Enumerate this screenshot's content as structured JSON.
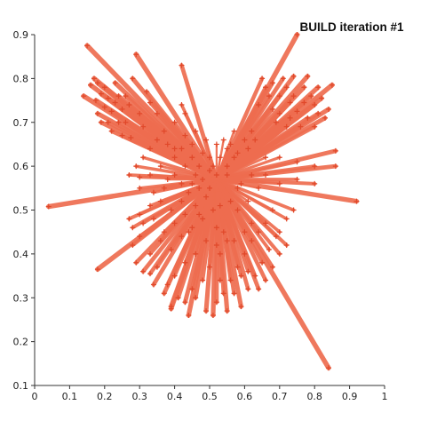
{
  "chart_data": {
    "type": "scatter",
    "title": "BUILD iteration #1",
    "xlabel": "",
    "ylabel": "",
    "xlim": [
      0,
      1
    ],
    "ylim": [
      0.1,
      0.9
    ],
    "xticks": [
      "0",
      "0.1",
      "0.2",
      "0.3",
      "0.4",
      "0.5",
      "0.6",
      "0.7",
      "0.8",
      "0.9",
      "1"
    ],
    "yticks": [
      "0.1",
      "0.2",
      "0.3",
      "0.4",
      "0.5",
      "0.6",
      "0.7",
      "0.8",
      "0.9"
    ],
    "grid": false,
    "colors": {
      "edge": "#ee6d4f",
      "marker": "#e0482a"
    },
    "center": [
      0.52,
      0.57
    ],
    "points": [
      [
        0.15,
        0.875
      ],
      [
        0.14,
        0.76
      ],
      [
        0.16,
        0.785
      ],
      [
        0.17,
        0.8
      ],
      [
        0.175,
        0.75
      ],
      [
        0.18,
        0.72
      ],
      [
        0.18,
        0.79
      ],
      [
        0.19,
        0.7
      ],
      [
        0.19,
        0.765
      ],
      [
        0.2,
        0.735
      ],
      [
        0.2,
        0.78
      ],
      [
        0.21,
        0.7
      ],
      [
        0.21,
        0.755
      ],
      [
        0.22,
        0.68
      ],
      [
        0.22,
        0.725
      ],
      [
        0.23,
        0.745
      ],
      [
        0.23,
        0.79
      ],
      [
        0.24,
        0.7
      ],
      [
        0.24,
        0.76
      ],
      [
        0.25,
        0.73
      ],
      [
        0.25,
        0.67
      ],
      [
        0.26,
        0.76
      ],
      [
        0.26,
        0.7
      ],
      [
        0.27,
        0.74
      ],
      [
        0.275,
        0.665
      ],
      [
        0.28,
        0.8
      ],
      [
        0.29,
        0.855
      ],
      [
        0.3,
        0.72
      ],
      [
        0.31,
        0.69
      ],
      [
        0.32,
        0.77
      ],
      [
        0.33,
        0.745
      ],
      [
        0.35,
        0.72
      ],
      [
        0.38,
        0.65
      ],
      [
        0.4,
        0.64
      ],
      [
        0.42,
        0.64
      ],
      [
        0.43,
        0.67
      ],
      [
        0.45,
        0.65
      ],
      [
        0.42,
        0.83
      ],
      [
        0.42,
        0.74
      ],
      [
        0.45,
        0.62
      ],
      [
        0.47,
        0.6
      ],
      [
        0.48,
        0.63
      ],
      [
        0.46,
        0.58
      ],
      [
        0.5,
        0.62
      ],
      [
        0.51,
        0.6
      ],
      [
        0.52,
        0.58
      ],
      [
        0.53,
        0.62
      ],
      [
        0.55,
        0.64
      ],
      [
        0.56,
        0.65
      ],
      [
        0.57,
        0.62
      ],
      [
        0.55,
        0.58
      ],
      [
        0.58,
        0.63
      ],
      [
        0.6,
        0.66
      ],
      [
        0.61,
        0.64
      ],
      [
        0.62,
        0.68
      ],
      [
        0.63,
        0.66
      ],
      [
        0.64,
        0.74
      ],
      [
        0.65,
        0.8
      ],
      [
        0.66,
        0.78
      ],
      [
        0.67,
        0.76
      ],
      [
        0.68,
        0.79
      ],
      [
        0.68,
        0.73
      ],
      [
        0.69,
        0.7
      ],
      [
        0.7,
        0.76
      ],
      [
        0.7,
        0.72
      ],
      [
        0.71,
        0.8
      ],
      [
        0.72,
        0.78
      ],
      [
        0.72,
        0.69
      ],
      [
        0.73,
        0.745
      ],
      [
        0.73,
        0.71
      ],
      [
        0.74,
        0.805
      ],
      [
        0.74,
        0.76
      ],
      [
        0.75,
        0.725
      ],
      [
        0.75,
        0.9
      ],
      [
        0.76,
        0.69
      ],
      [
        0.77,
        0.78
      ],
      [
        0.77,
        0.745
      ],
      [
        0.78,
        0.805
      ],
      [
        0.78,
        0.71
      ],
      [
        0.79,
        0.76
      ],
      [
        0.8,
        0.74
      ],
      [
        0.8,
        0.69
      ],
      [
        0.81,
        0.78
      ],
      [
        0.81,
        0.72
      ],
      [
        0.82,
        0.755
      ],
      [
        0.83,
        0.71
      ],
      [
        0.84,
        0.73
      ],
      [
        0.85,
        0.785
      ],
      [
        0.86,
        0.635
      ],
      [
        0.86,
        0.6
      ],
      [
        0.8,
        0.6
      ],
      [
        0.75,
        0.61
      ],
      [
        0.7,
        0.62
      ],
      [
        0.66,
        0.62
      ],
      [
        0.62,
        0.58
      ],
      [
        0.59,
        0.56
      ],
      [
        0.92,
        0.52
      ],
      [
        0.8,
        0.56
      ],
      [
        0.75,
        0.57
      ],
      [
        0.7,
        0.56
      ],
      [
        0.66,
        0.58
      ],
      [
        0.64,
        0.55
      ],
      [
        0.61,
        0.52
      ],
      [
        0.58,
        0.5
      ],
      [
        0.3,
        0.575
      ],
      [
        0.33,
        0.58
      ],
      [
        0.36,
        0.6
      ],
      [
        0.38,
        0.57
      ],
      [
        0.4,
        0.62
      ],
      [
        0.42,
        0.56
      ],
      [
        0.44,
        0.54
      ],
      [
        0.3,
        0.55
      ],
      [
        0.34,
        0.54
      ],
      [
        0.37,
        0.55
      ],
      [
        0.4,
        0.58
      ],
      [
        0.43,
        0.6
      ],
      [
        0.3,
        0.49
      ],
      [
        0.33,
        0.51
      ],
      [
        0.36,
        0.52
      ],
      [
        0.39,
        0.5
      ],
      [
        0.42,
        0.52
      ],
      [
        0.45,
        0.56
      ],
      [
        0.27,
        0.48
      ],
      [
        0.04,
        0.508
      ],
      [
        0.28,
        0.46
      ],
      [
        0.31,
        0.47
      ],
      [
        0.34,
        0.48
      ],
      [
        0.37,
        0.45
      ],
      [
        0.4,
        0.47
      ],
      [
        0.43,
        0.49
      ],
      [
        0.46,
        0.51
      ],
      [
        0.49,
        0.53
      ],
      [
        0.28,
        0.42
      ],
      [
        0.3,
        0.44
      ],
      [
        0.33,
        0.4
      ],
      [
        0.36,
        0.43
      ],
      [
        0.39,
        0.41
      ],
      [
        0.42,
        0.44
      ],
      [
        0.45,
        0.46
      ],
      [
        0.48,
        0.48
      ],
      [
        0.51,
        0.5
      ],
      [
        0.29,
        0.38
      ],
      [
        0.31,
        0.36
      ],
      [
        0.33,
        0.355
      ],
      [
        0.35,
        0.37
      ],
      [
        0.38,
        0.33
      ],
      [
        0.4,
        0.35
      ],
      [
        0.43,
        0.38
      ],
      [
        0.46,
        0.4
      ],
      [
        0.49,
        0.43
      ],
      [
        0.52,
        0.46
      ],
      [
        0.18,
        0.365
      ],
      [
        0.34,
        0.33
      ],
      [
        0.37,
        0.31
      ],
      [
        0.39,
        0.28
      ],
      [
        0.41,
        0.3
      ],
      [
        0.43,
        0.29
      ],
      [
        0.45,
        0.32
      ],
      [
        0.48,
        0.34
      ],
      [
        0.5,
        0.37
      ],
      [
        0.53,
        0.4
      ],
      [
        0.55,
        0.43
      ],
      [
        0.39,
        0.275
      ],
      [
        0.44,
        0.26
      ],
      [
        0.46,
        0.3
      ],
      [
        0.49,
        0.27
      ],
      [
        0.51,
        0.26
      ],
      [
        0.52,
        0.29
      ],
      [
        0.54,
        0.31
      ],
      [
        0.56,
        0.34
      ],
      [
        0.58,
        0.37
      ],
      [
        0.6,
        0.4
      ],
      [
        0.62,
        0.43
      ],
      [
        0.53,
        0.34
      ],
      [
        0.55,
        0.27
      ],
      [
        0.57,
        0.31
      ],
      [
        0.59,
        0.28
      ],
      [
        0.61,
        0.32
      ],
      [
        0.63,
        0.35
      ],
      [
        0.65,
        0.38
      ],
      [
        0.67,
        0.41
      ],
      [
        0.69,
        0.44
      ],
      [
        0.59,
        0.35
      ],
      [
        0.61,
        0.36
      ],
      [
        0.64,
        0.32
      ],
      [
        0.66,
        0.34
      ],
      [
        0.68,
        0.37
      ],
      [
        0.7,
        0.4
      ],
      [
        0.72,
        0.42
      ],
      [
        0.7,
        0.45
      ],
      [
        0.72,
        0.48
      ],
      [
        0.74,
        0.5
      ],
      [
        0.68,
        0.5
      ],
      [
        0.66,
        0.47
      ],
      [
        0.64,
        0.45
      ],
      [
        0.62,
        0.47
      ],
      [
        0.6,
        0.45
      ],
      [
        0.57,
        0.43
      ],
      [
        0.54,
        0.45
      ],
      [
        0.52,
        0.42
      ],
      [
        0.84,
        0.14
      ],
      [
        0.48,
        0.57
      ],
      [
        0.5,
        0.55
      ],
      [
        0.47,
        0.49
      ],
      [
        0.44,
        0.45
      ],
      [
        0.56,
        0.52
      ],
      [
        0.58,
        0.55
      ],
      [
        0.53,
        0.51
      ],
      [
        0.5,
        0.59
      ],
      [
        0.47,
        0.55
      ],
      [
        0.55,
        0.6
      ],
      [
        0.52,
        0.65
      ],
      [
        0.49,
        0.66
      ],
      [
        0.46,
        0.68
      ],
      [
        0.54,
        0.66
      ],
      [
        0.57,
        0.68
      ],
      [
        0.43,
        0.72
      ],
      [
        0.4,
        0.7
      ],
      [
        0.37,
        0.68
      ],
      [
        0.35,
        0.66
      ],
      [
        0.33,
        0.64
      ],
      [
        0.31,
        0.62
      ],
      [
        0.29,
        0.6
      ],
      [
        0.27,
        0.58
      ]
    ]
  }
}
